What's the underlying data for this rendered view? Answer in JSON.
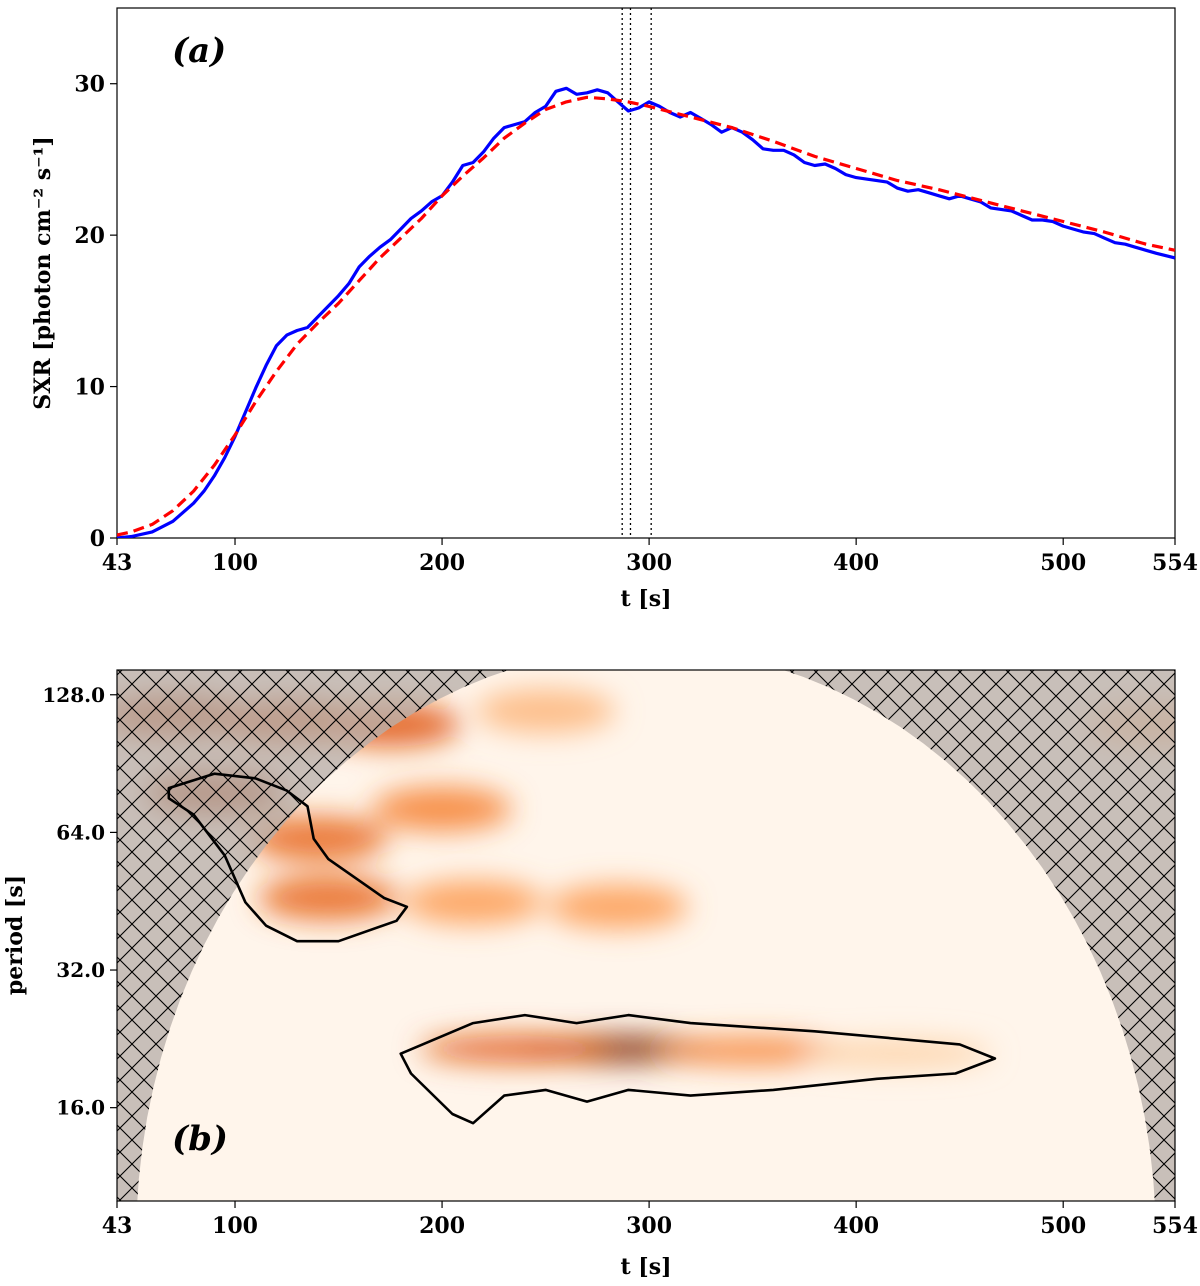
{
  "chart_data": [
    {
      "type": "line",
      "panel_label": "(a)",
      "xlabel": "t [s]",
      "ylabel": "SXR [photon cm⁻² s⁻¹]",
      "xlim": [
        43,
        554
      ],
      "ylim": [
        0,
        35
      ],
      "xticks": [
        43,
        100,
        200,
        300,
        400,
        500,
        554
      ],
      "yticks": [
        0,
        10,
        20,
        30
      ],
      "vlines": [
        287,
        291,
        301
      ],
      "series": [
        {
          "color": "#0000ff",
          "style": "solid",
          "x": [
            43,
            50,
            60,
            70,
            80,
            85,
            90,
            95,
            100,
            105,
            110,
            115,
            120,
            125,
            130,
            135,
            140,
            145,
            150,
            155,
            160,
            165,
            170,
            175,
            180,
            185,
            190,
            195,
            200,
            205,
            210,
            215,
            220,
            225,
            230,
            235,
            240,
            245,
            250,
            255,
            260,
            265,
            270,
            275,
            280,
            285,
            290,
            295,
            300,
            305,
            310,
            315,
            320,
            325,
            330,
            335,
            340,
            345,
            350,
            355,
            360,
            365,
            370,
            375,
            380,
            385,
            390,
            395,
            400,
            405,
            410,
            415,
            420,
            425,
            430,
            435,
            440,
            445,
            450,
            455,
            460,
            465,
            470,
            475,
            480,
            485,
            490,
            495,
            500,
            505,
            510,
            515,
            520,
            525,
            530,
            535,
            540,
            545,
            554
          ],
          "y": [
            0,
            0.1,
            0.4,
            1.1,
            2.3,
            3.1,
            4.1,
            5.3,
            6.7,
            8.3,
            9.9,
            11.4,
            12.7,
            13.4,
            13.7,
            13.9,
            14.6,
            15.3,
            16,
            16.8,
            17.9,
            18.6,
            19.2,
            19.7,
            20.4,
            21.1,
            21.6,
            22.2,
            22.6,
            23.5,
            24.6,
            24.8,
            25.5,
            26.4,
            27.1,
            27.3,
            27.5,
            28.1,
            28.5,
            29.5,
            29.7,
            29.3,
            29.4,
            29.6,
            29.4,
            28.8,
            28.2,
            28.4,
            28.8,
            28.5,
            28.1,
            27.8,
            28.1,
            27.7,
            27.3,
            26.8,
            27.1,
            26.8,
            26.3,
            25.7,
            25.6,
            25.6,
            25.3,
            24.8,
            24.6,
            24.7,
            24.4,
            24,
            23.8,
            23.7,
            23.6,
            23.5,
            23.1,
            22.9,
            23,
            22.8,
            22.6,
            22.4,
            22.6,
            22.4,
            22.2,
            21.8,
            21.7,
            21.6,
            21.3,
            21,
            21,
            20.9,
            20.6,
            20.4,
            20.2,
            20.1,
            19.8,
            19.5,
            19.4,
            19.2,
            19,
            18.8,
            18.5
          ]
        },
        {
          "color": "#ff0000",
          "style": "dashed",
          "x": [
            43,
            50,
            60,
            70,
            80,
            90,
            100,
            110,
            120,
            130,
            140,
            150,
            160,
            170,
            180,
            190,
            200,
            210,
            220,
            230,
            240,
            250,
            260,
            270,
            280,
            290,
            300,
            320,
            340,
            360,
            380,
            400,
            420,
            440,
            460,
            480,
            500,
            520,
            540,
            554
          ],
          "y": [
            0.2,
            0.4,
            0.9,
            1.8,
            3.1,
            4.8,
            6.8,
            9,
            11,
            12.8,
            14.2,
            15.5,
            17,
            18.5,
            19.8,
            21.1,
            22.6,
            23.9,
            25.1,
            26.4,
            27.4,
            28.3,
            28.8,
            29.1,
            29,
            28.8,
            28.5,
            27.8,
            27.1,
            26.2,
            25.2,
            24.4,
            23.6,
            23,
            22.3,
            21.6,
            20.9,
            20.2,
            19.4,
            19
          ]
        }
      ]
    },
    {
      "type": "heatmap",
      "panel_label": "(b)",
      "xlabel": "t [s]",
      "ylabel": "period [s]",
      "xlim": [
        43,
        554
      ],
      "ylim": [
        10,
        145
      ],
      "yscale": "log",
      "xticks": [
        43,
        100,
        200,
        300,
        400,
        500,
        554
      ],
      "yticks": [
        "16.0",
        "32.0",
        "64.0",
        "128.0"
      ],
      "colormap": "Oranges",
      "cone_of_influence_color": "#b8b0aa",
      "contour_color": "#000000",
      "power_peaks": [
        {
          "t": 70,
          "period": 115,
          "power": 0.85
        },
        {
          "t": 125,
          "period": 112,
          "power": 0.8
        },
        {
          "t": 175,
          "period": 110,
          "power": 0.7
        },
        {
          "t": 250,
          "period": 118,
          "power": 0.35
        },
        {
          "t": 90,
          "period": 78,
          "power": 0.9
        },
        {
          "t": 140,
          "period": 62,
          "power": 0.65
        },
        {
          "t": 200,
          "period": 72,
          "power": 0.55
        },
        {
          "t": 145,
          "period": 46,
          "power": 0.65
        },
        {
          "t": 215,
          "period": 45,
          "power": 0.45
        },
        {
          "t": 285,
          "period": 44,
          "power": 0.45
        },
        {
          "t": 285,
          "period": 21.5,
          "power": 1.0
        },
        {
          "t": 235,
          "period": 21.5,
          "power": 0.7
        },
        {
          "t": 350,
          "period": 21.3,
          "power": 0.55
        },
        {
          "t": 420,
          "period": 21,
          "power": 0.25
        },
        {
          "t": 545,
          "period": 110,
          "power": 0.35
        }
      ],
      "contours": [
        {
          "t": [
            68,
            90,
            110,
            125,
            135,
            138,
            145,
            172,
            183,
            178,
            150,
            130,
            115,
            105,
            95,
            80,
            68
          ],
          "period": [
            80,
            86,
            84,
            79,
            73,
            62,
            56,
            46,
            44,
            41,
            37,
            37,
            40,
            45,
            57,
            70,
            76
          ]
        },
        {
          "t": [
            180,
            215,
            240,
            265,
            290,
            320,
            380,
            450,
            467,
            448,
            410,
            360,
            320,
            290,
            270,
            250,
            230,
            215,
            205,
            185,
            180
          ],
          "period": [
            21,
            24.5,
            25.5,
            24.5,
            25.5,
            24.5,
            23.5,
            22,
            20.5,
            19,
            18.5,
            17.5,
            17,
            17.5,
            16.5,
            17.5,
            17,
            14.8,
            15.5,
            19,
            21
          ]
        }
      ]
    }
  ]
}
